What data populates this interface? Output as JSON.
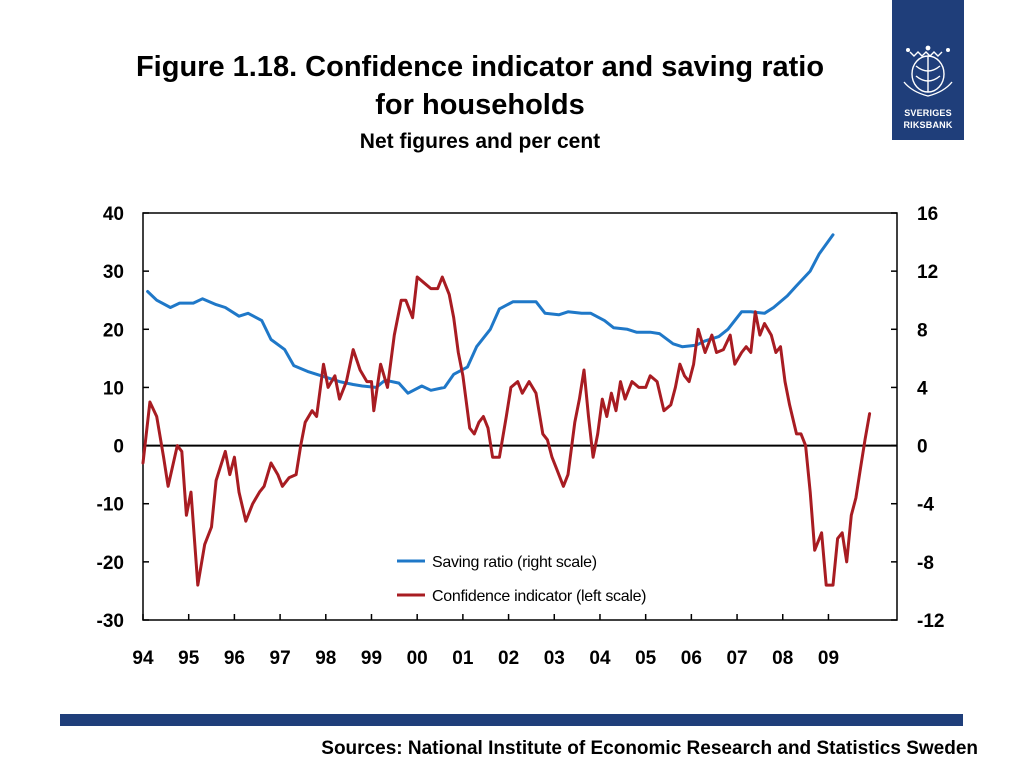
{
  "header": {
    "title_line1": "Figure 1.18. Confidence indicator and saving ratio",
    "title_line2": "for households",
    "subtitle": "Net figures and per cent"
  },
  "logo": {
    "line1": "SVERIGES",
    "line2": "RIKSBANK",
    "color": "#1f3e7a"
  },
  "footer": {
    "sources": "Sources: National Institute of Economic Research and Statistics Sweden"
  },
  "chart_data": {
    "type": "line",
    "title": "Figure 1.18. Confidence indicator and saving ratio for households",
    "subtitle": "Net figures and per cent",
    "x_range": [
      1994.0,
      2010.5
    ],
    "x_ticks": [
      {
        "label": "94",
        "x": 1994.0
      },
      {
        "label": "95",
        "x": 1995.0
      },
      {
        "label": "96",
        "x": 1996.0
      },
      {
        "label": "97",
        "x": 1997.0
      },
      {
        "label": "98",
        "x": 1998.0
      },
      {
        "label": "99",
        "x": 1999.0
      },
      {
        "label": "00",
        "x": 2000.0
      },
      {
        "label": "01",
        "x": 2001.0
      },
      {
        "label": "02",
        "x": 2002.0
      },
      {
        "label": "03",
        "x": 2003.0
      },
      {
        "label": "04",
        "x": 2004.0
      },
      {
        "label": "05",
        "x": 2005.0
      },
      {
        "label": "06",
        "x": 2006.0
      },
      {
        "label": "07",
        "x": 2007.0
      },
      {
        "label": "08",
        "x": 2008.0
      },
      {
        "label": "09",
        "x": 2009.0
      }
    ],
    "y_left": {
      "min": -30,
      "max": 40,
      "ticks": [
        40,
        30,
        20,
        10,
        0,
        -10,
        -20,
        -30
      ]
    },
    "y_right": {
      "min": -12,
      "max": 16,
      "ticks": [
        16,
        12,
        8,
        4,
        0,
        -4,
        -8,
        -12
      ]
    },
    "grid": false,
    "legend_position": "bottom-center",
    "series": [
      {
        "name": "Saving ratio (right scale)",
        "axis": "right",
        "color": "#1f78c8",
        "points": [
          [
            1994.1,
            10.6
          ],
          [
            1994.3,
            10.0
          ],
          [
            1994.6,
            9.5
          ],
          [
            1994.8,
            9.8
          ],
          [
            1995.1,
            9.8
          ],
          [
            1995.3,
            10.1
          ],
          [
            1995.6,
            9.7
          ],
          [
            1995.8,
            9.5
          ],
          [
            1996.1,
            8.9
          ],
          [
            1996.3,
            9.1
          ],
          [
            1996.6,
            8.6
          ],
          [
            1996.8,
            7.3
          ],
          [
            1997.1,
            6.6
          ],
          [
            1997.3,
            5.5
          ],
          [
            1997.6,
            5.1
          ],
          [
            1997.8,
            4.9
          ],
          [
            1998.1,
            4.6
          ],
          [
            1998.3,
            4.4
          ],
          [
            1998.6,
            4.2
          ],
          [
            1998.8,
            4.1
          ],
          [
            1999.1,
            4.0
          ],
          [
            1999.3,
            4.5
          ],
          [
            1999.6,
            4.3
          ],
          [
            1999.8,
            3.6
          ],
          [
            2000.1,
            4.1
          ],
          [
            2000.3,
            3.8
          ],
          [
            2000.6,
            4.0
          ],
          [
            2000.8,
            4.9
          ],
          [
            2001.1,
            5.4
          ],
          [
            2001.3,
            6.8
          ],
          [
            2001.6,
            8.0
          ],
          [
            2001.8,
            9.4
          ],
          [
            2002.1,
            9.9
          ],
          [
            2002.3,
            9.9
          ],
          [
            2002.6,
            9.9
          ],
          [
            2002.8,
            9.1
          ],
          [
            2003.1,
            9.0
          ],
          [
            2003.3,
            9.2
          ],
          [
            2003.6,
            9.1
          ],
          [
            2003.8,
            9.1
          ],
          [
            2004.1,
            8.6
          ],
          [
            2004.3,
            8.1
          ],
          [
            2004.6,
            8.0
          ],
          [
            2004.8,
            7.8
          ],
          [
            2005.1,
            7.8
          ],
          [
            2005.3,
            7.7
          ],
          [
            2005.6,
            7.0
          ],
          [
            2005.8,
            6.8
          ],
          [
            2006.1,
            6.9
          ],
          [
            2006.3,
            7.2
          ],
          [
            2006.6,
            7.5
          ],
          [
            2006.8,
            8.0
          ],
          [
            2007.1,
            9.2
          ],
          [
            2007.3,
            9.2
          ],
          [
            2007.6,
            9.1
          ],
          [
            2007.8,
            9.5
          ],
          [
            2008.1,
            10.3
          ],
          [
            2008.3,
            11.0
          ],
          [
            2008.6,
            12.0
          ],
          [
            2008.8,
            13.2
          ],
          [
            2009.1,
            14.5
          ]
        ]
      },
      {
        "name": "Confidence indicator (left scale)",
        "axis": "left",
        "color": "#a81c22",
        "points": [
          [
            1994.0,
            -3
          ],
          [
            1994.15,
            7.5
          ],
          [
            1994.3,
            5
          ],
          [
            1994.45,
            -2
          ],
          [
            1994.55,
            -7
          ],
          [
            1994.75,
            0
          ],
          [
            1994.85,
            -1
          ],
          [
            1994.95,
            -12
          ],
          [
            1995.05,
            -8
          ],
          [
            1995.2,
            -24
          ],
          [
            1995.35,
            -17
          ],
          [
            1995.5,
            -14
          ],
          [
            1995.6,
            -6
          ],
          [
            1995.8,
            -1
          ],
          [
            1995.9,
            -5
          ],
          [
            1996.0,
            -2
          ],
          [
            1996.1,
            -8
          ],
          [
            1996.25,
            -13
          ],
          [
            1996.4,
            -10
          ],
          [
            1996.55,
            -8
          ],
          [
            1996.65,
            -7
          ],
          [
            1996.8,
            -3
          ],
          [
            1996.95,
            -5
          ],
          [
            1997.05,
            -7
          ],
          [
            1997.2,
            -5.5
          ],
          [
            1997.35,
            -5
          ],
          [
            1997.45,
            0
          ],
          [
            1997.55,
            4
          ],
          [
            1997.7,
            6
          ],
          [
            1997.8,
            5
          ],
          [
            1997.95,
            14
          ],
          [
            1998.05,
            10
          ],
          [
            1998.2,
            12
          ],
          [
            1998.3,
            8
          ],
          [
            1998.45,
            11
          ],
          [
            1998.6,
            16.5
          ],
          [
            1998.75,
            13
          ],
          [
            1998.9,
            11
          ],
          [
            1999.0,
            11
          ],
          [
            1999.05,
            6
          ],
          [
            1999.2,
            14
          ],
          [
            1999.35,
            10
          ],
          [
            1999.5,
            19
          ],
          [
            1999.65,
            25
          ],
          [
            1999.75,
            25
          ],
          [
            1999.9,
            22
          ],
          [
            2000.0,
            29
          ],
          [
            2000.15,
            28
          ],
          [
            2000.3,
            27
          ],
          [
            2000.45,
            27
          ],
          [
            2000.55,
            29
          ],
          [
            2000.7,
            26
          ],
          [
            2000.8,
            22
          ],
          [
            2000.9,
            16
          ],
          [
            2001.0,
            12
          ],
          [
            2001.15,
            3
          ],
          [
            2001.25,
            2
          ],
          [
            2001.35,
            4
          ],
          [
            2001.45,
            5
          ],
          [
            2001.55,
            3
          ],
          [
            2001.65,
            -2
          ],
          [
            2001.8,
            -2
          ],
          [
            2001.95,
            5
          ],
          [
            2002.05,
            10
          ],
          [
            2002.2,
            11
          ],
          [
            2002.3,
            9
          ],
          [
            2002.45,
            11
          ],
          [
            2002.6,
            9
          ],
          [
            2002.75,
            2
          ],
          [
            2002.85,
            1
          ],
          [
            2002.95,
            -2
          ],
          [
            2003.05,
            -4
          ],
          [
            2003.2,
            -7
          ],
          [
            2003.3,
            -5
          ],
          [
            2003.45,
            4
          ],
          [
            2003.55,
            8
          ],
          [
            2003.65,
            13
          ],
          [
            2003.75,
            5
          ],
          [
            2003.85,
            -2
          ],
          [
            2003.95,
            2
          ],
          [
            2004.05,
            8
          ],
          [
            2004.15,
            5
          ],
          [
            2004.25,
            9
          ],
          [
            2004.35,
            6
          ],
          [
            2004.45,
            11
          ],
          [
            2004.55,
            8
          ],
          [
            2004.7,
            11
          ],
          [
            2004.85,
            10
          ],
          [
            2005.0,
            10
          ],
          [
            2005.1,
            12
          ],
          [
            2005.25,
            11
          ],
          [
            2005.4,
            6
          ],
          [
            2005.55,
            7
          ],
          [
            2005.65,
            10
          ],
          [
            2005.75,
            14
          ],
          [
            2005.85,
            12
          ],
          [
            2005.95,
            11
          ],
          [
            2006.05,
            14
          ],
          [
            2006.15,
            20
          ],
          [
            2006.3,
            16
          ],
          [
            2006.45,
            19
          ],
          [
            2006.55,
            16
          ],
          [
            2006.7,
            16.5
          ],
          [
            2006.85,
            19
          ],
          [
            2006.95,
            14
          ],
          [
            2007.1,
            16
          ],
          [
            2007.2,
            17
          ],
          [
            2007.3,
            16
          ],
          [
            2007.4,
            23
          ],
          [
            2007.5,
            19
          ],
          [
            2007.6,
            21
          ],
          [
            2007.75,
            19
          ],
          [
            2007.85,
            16
          ],
          [
            2007.95,
            17
          ],
          [
            2008.05,
            11
          ],
          [
            2008.15,
            7
          ],
          [
            2008.3,
            2
          ],
          [
            2008.4,
            2
          ],
          [
            2008.5,
            0
          ],
          [
            2008.6,
            -8
          ],
          [
            2008.7,
            -18
          ],
          [
            2008.85,
            -15
          ],
          [
            2008.95,
            -24
          ],
          [
            2009.1,
            -24
          ],
          [
            2009.2,
            -16
          ],
          [
            2009.3,
            -15
          ],
          [
            2009.4,
            -20
          ],
          [
            2009.5,
            -12
          ],
          [
            2009.6,
            -9
          ],
          [
            2009.7,
            -4
          ],
          [
            2009.8,
            1
          ],
          [
            2009.9,
            5.5
          ]
        ]
      }
    ]
  }
}
